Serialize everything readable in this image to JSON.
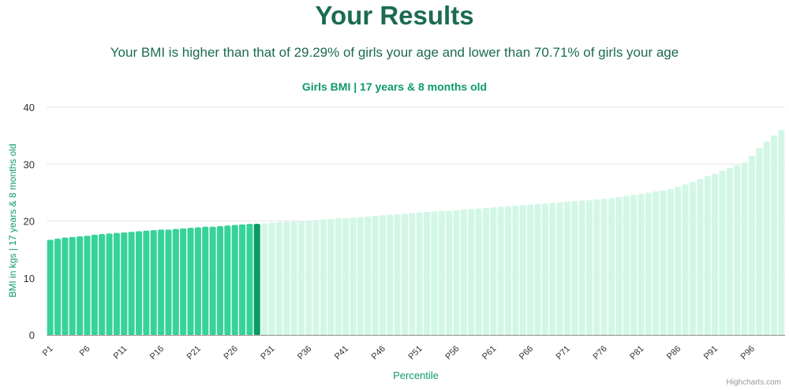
{
  "header": {
    "title": "Your Results",
    "summary": "Your BMI is higher than that of 29.29% of girls your age and lower than 70.71% of girls your age"
  },
  "credit": "Highcharts.com",
  "colors": {
    "title": "#1a6b52",
    "chart_title": "#0e9a68",
    "bar_below": "#36d399",
    "bar_current": "#0a9b6a",
    "bar_above": "#d2f7e6",
    "grid": "#e6e6e6",
    "axis_text": "#333333",
    "axis_title": "#0e9a68"
  },
  "chart_data": {
    "type": "bar",
    "title": "Girls BMI | 17 years & 8 months old",
    "xlabel": "Percentile",
    "ylabel": "BMI in kgs | 17 years & 8 months old",
    "ylim": [
      0,
      40
    ],
    "yticks": [
      0,
      10,
      20,
      30,
      40
    ],
    "grid": true,
    "highlight_index": 28,
    "categories": [
      "P1",
      "P2",
      "P3",
      "P4",
      "P5",
      "P6",
      "P7",
      "P8",
      "P9",
      "P10",
      "P11",
      "P12",
      "P13",
      "P14",
      "P15",
      "P16",
      "P17",
      "P18",
      "P19",
      "P20",
      "P21",
      "P22",
      "P23",
      "P24",
      "P25",
      "P26",
      "P27",
      "P28",
      "P29",
      "P30",
      "P31",
      "P32",
      "P33",
      "P34",
      "P35",
      "P36",
      "P37",
      "P38",
      "P39",
      "P40",
      "P41",
      "P42",
      "P43",
      "P44",
      "P45",
      "P46",
      "P47",
      "P48",
      "P49",
      "P50",
      "P51",
      "P52",
      "P53",
      "P54",
      "P55",
      "P56",
      "P57",
      "P58",
      "P59",
      "P60",
      "P61",
      "P62",
      "P63",
      "P64",
      "P65",
      "P66",
      "P67",
      "P68",
      "P69",
      "P70",
      "P71",
      "P72",
      "P73",
      "P74",
      "P75",
      "P76",
      "P77",
      "P78",
      "P79",
      "P80",
      "P81",
      "P82",
      "P83",
      "P84",
      "P85",
      "P86",
      "P87",
      "P88",
      "P89",
      "P90",
      "P91",
      "P92",
      "P93",
      "P94",
      "P95",
      "P96",
      "P97",
      "P98",
      "P99",
      "P100"
    ],
    "visible_tick_labels": [
      "P1",
      "P6",
      "P11",
      "P16",
      "P21",
      "P26",
      "P31",
      "P36",
      "P41",
      "P46",
      "P51",
      "P56",
      "P61",
      "P66",
      "P71",
      "P76",
      "P81",
      "P86",
      "P91",
      "P96"
    ],
    "values": [
      16.7,
      16.9,
      17.1,
      17.2,
      17.3,
      17.4,
      17.6,
      17.7,
      17.8,
      17.9,
      18.0,
      18.1,
      18.2,
      18.3,
      18.4,
      18.5,
      18.5,
      18.6,
      18.7,
      18.8,
      18.9,
      19.0,
      19.0,
      19.1,
      19.2,
      19.3,
      19.4,
      19.5,
      19.5,
      19.6,
      19.7,
      19.8,
      19.9,
      19.9,
      20.0,
      20.1,
      20.2,
      20.3,
      20.4,
      20.5,
      20.5,
      20.6,
      20.7,
      20.8,
      20.9,
      21.0,
      21.1,
      21.2,
      21.3,
      21.4,
      21.5,
      21.6,
      21.7,
      21.8,
      21.8,
      21.9,
      22.0,
      22.1,
      22.2,
      22.3,
      22.4,
      22.5,
      22.6,
      22.7,
      22.8,
      22.9,
      23.0,
      23.1,
      23.2,
      23.3,
      23.4,
      23.5,
      23.6,
      23.7,
      23.8,
      23.9,
      24.0,
      24.2,
      24.4,
      24.6,
      24.8,
      25.0,
      25.2,
      25.4,
      25.6,
      26.0,
      26.4,
      26.9,
      27.4,
      27.9,
      28.3,
      28.8,
      29.3,
      29.8,
      30.3,
      31.5,
      32.8,
      34.0,
      35.0,
      36.0
    ]
  }
}
